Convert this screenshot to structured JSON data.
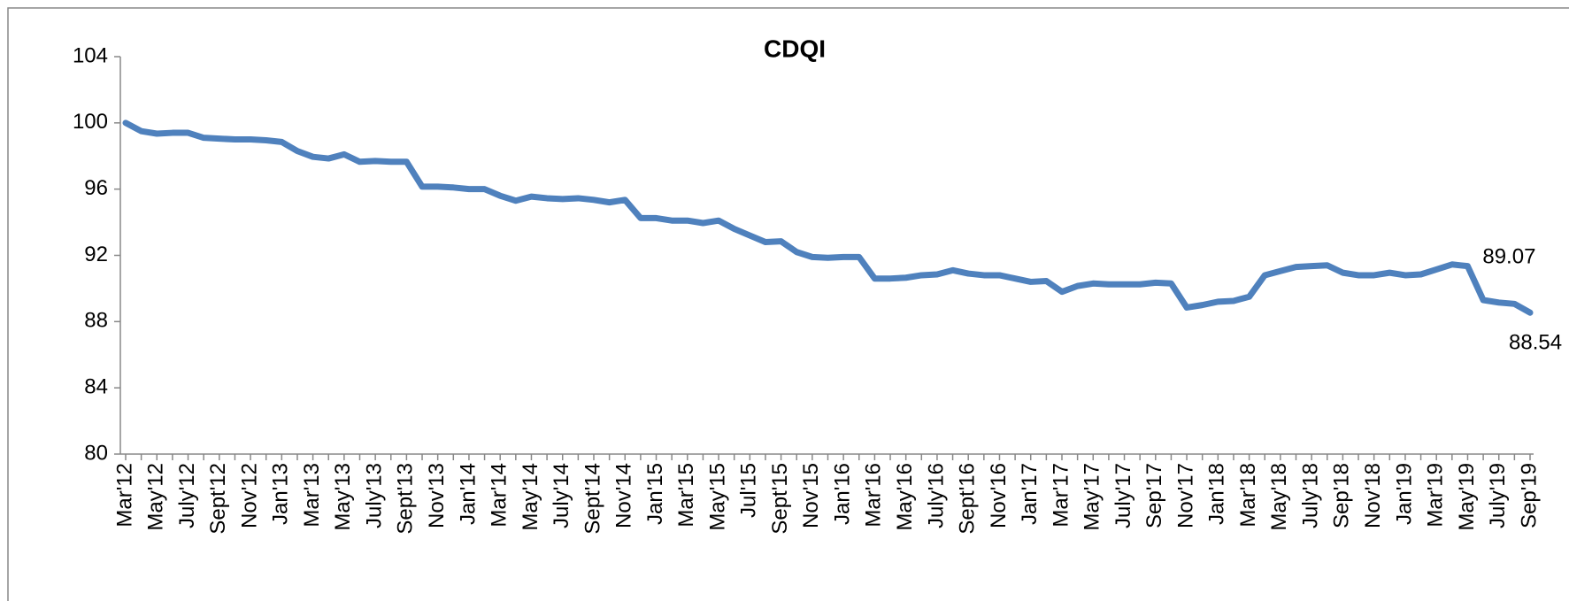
{
  "chart_data": {
    "type": "line",
    "title": "CDQI",
    "categories": [
      "Mar'12",
      null,
      "May'12",
      null,
      "July'12",
      null,
      "Sept'12",
      null,
      "Nov'12",
      null,
      "Jan'13",
      null,
      "Mar'13",
      null,
      "May'13",
      null,
      "July'13",
      null,
      "Sept'13",
      null,
      "Nov'13",
      null,
      "Jan'14",
      null,
      "Mar'14",
      null,
      "May'14",
      null,
      "July'14",
      null,
      "Sept'14",
      null,
      "Nov'14",
      null,
      "Jan'15",
      null,
      "Mar'15",
      null,
      "May'15",
      null,
      "Jul'15",
      null,
      "Sept'15",
      null,
      "Nov'15",
      null,
      "Jan'16",
      null,
      "Mar'16",
      null,
      "May'16",
      null,
      "July'16",
      null,
      "Sept'16",
      null,
      "Nov'16",
      null,
      "Jan'17",
      null,
      "Mar'17",
      null,
      "May'17",
      null,
      "July'17",
      null,
      "Sep'17",
      null,
      "Nov'17",
      null,
      "Jan'18",
      null,
      "Mar'18",
      null,
      "May'18",
      null,
      "July'18",
      null,
      "Sep'18",
      null,
      "Nov'18",
      null,
      "Jan'19",
      null,
      "Mar'19",
      null,
      "May'19",
      null,
      "July'19",
      null,
      "Sep'19"
    ],
    "series": [
      {
        "color": "#4f81bd",
        "values": [
          100.0,
          99.5,
          99.35,
          99.4,
          99.4,
          99.1,
          99.05,
          99.0,
          99.0,
          98.95,
          98.85,
          98.3,
          97.95,
          97.85,
          98.1,
          97.65,
          97.7,
          97.65,
          97.65,
          96.15,
          96.15,
          96.1,
          96.0,
          96.0,
          95.6,
          95.3,
          95.55,
          95.45,
          95.4,
          95.45,
          95.35,
          95.2,
          95.35,
          94.25,
          94.25,
          94.1,
          94.1,
          93.95,
          94.1,
          93.6,
          93.2,
          92.8,
          92.85,
          92.2,
          91.9,
          91.85,
          91.9,
          91.9,
          90.6,
          90.6,
          90.65,
          90.8,
          90.85,
          91.1,
          90.9,
          90.8,
          90.8,
          90.6,
          90.4,
          90.45,
          89.8,
          90.15,
          90.3,
          90.25,
          90.25,
          90.25,
          90.35,
          90.3,
          88.85,
          89.0,
          89.2,
          89.25,
          89.5,
          90.8,
          91.05,
          91.3,
          91.35,
          91.4,
          90.95,
          90.8,
          90.8,
          90.95,
          90.8,
          90.85,
          91.15,
          91.45,
          91.35,
          89.3,
          89.15,
          89.07,
          88.54
        ],
        "value_labels": [
          null,
          null,
          null,
          null,
          null,
          null,
          null,
          null,
          null,
          null,
          null,
          null,
          null,
          null,
          null,
          null,
          null,
          null,
          null,
          null,
          null,
          null,
          null,
          null,
          null,
          null,
          null,
          null,
          null,
          null,
          null,
          null,
          null,
          null,
          null,
          null,
          null,
          null,
          null,
          null,
          null,
          null,
          null,
          null,
          null,
          null,
          null,
          null,
          null,
          null,
          null,
          null,
          null,
          null,
          null,
          null,
          null,
          null,
          null,
          null,
          null,
          null,
          null,
          null,
          null,
          null,
          null,
          null,
          null,
          null,
          null,
          null,
          null,
          null,
          null,
          null,
          null,
          null,
          null,
          null,
          null,
          null,
          null,
          null,
          null,
          null,
          null,
          null,
          null,
          "89.07",
          "88.54"
        ]
      }
    ],
    "ylim": [
      80,
      104
    ],
    "yticks": [
      80,
      84,
      88,
      92,
      96,
      100,
      104
    ]
  }
}
